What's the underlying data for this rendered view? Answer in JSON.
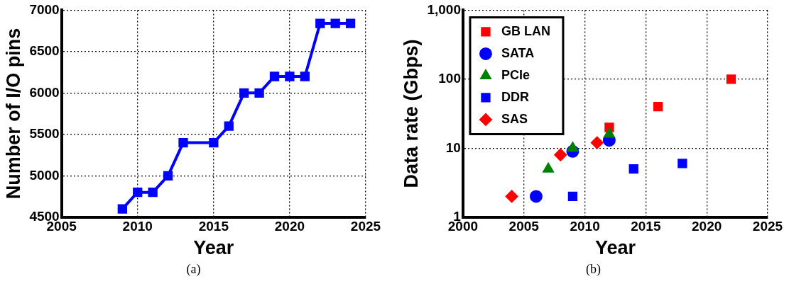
{
  "chart_data": [
    {
      "type": "line",
      "xlabel": "Year",
      "ylabel": "Number of I/O pins",
      "xlim": [
        2005,
        2025
      ],
      "xticks": [
        2005,
        2010,
        2015,
        2020,
        2025
      ],
      "ylim": [
        4500,
        7000
      ],
      "yticks": [
        4500,
        5000,
        5500,
        6000,
        6500,
        7000
      ],
      "grid": true,
      "marker": "square",
      "line_style": "solid",
      "annotations": [
        "(a)"
      ],
      "series": [
        {
          "color": "#0000ff",
          "x": [
            2009,
            2010,
            2011,
            2012,
            2013,
            2015,
            2016,
            2017,
            2018,
            2019,
            2020,
            2021,
            2022,
            2023,
            2024
          ],
          "values": [
            4600,
            4800,
            4800,
            5000,
            5400,
            5400,
            5600,
            6000,
            6000,
            6200,
            6200,
            6200,
            6840,
            6840,
            6840
          ]
        }
      ]
    },
    {
      "type": "scatter",
      "xlabel": "Year",
      "ylabel": "Data rate (Gbps)",
      "log": "y",
      "xlim": [
        2000,
        2025
      ],
      "xticks": [
        2000,
        2005,
        2010,
        2015,
        2020,
        2025
      ],
      "ylim": [
        1,
        1000
      ],
      "yticks": [
        1,
        10,
        100,
        {
          "value": 1000,
          "label": "1,000"
        }
      ],
      "grid": true,
      "legend": "top left",
      "annotations": [
        "(b)"
      ],
      "series": [
        {
          "name": "GB LAN",
          "color": "#ff0000",
          "marker": "square",
          "x": [
            2012,
            2016,
            2022
          ],
          "values": [
            20,
            40,
            100
          ]
        },
        {
          "name": "SATA",
          "color": "#0000ff",
          "marker": "circle",
          "x": [
            2006,
            2009,
            2012
          ],
          "values": [
            2,
            9,
            13
          ]
        },
        {
          "name": "PCIe",
          "color": "#008000",
          "marker": "triangle",
          "x": [
            2007,
            2009,
            2012
          ],
          "values": [
            5,
            10,
            16
          ]
        },
        {
          "name": "DDR",
          "color": "#0000ff",
          "marker": "square",
          "x": [
            2009,
            2014,
            2018
          ],
          "values": [
            2,
            5,
            6
          ]
        },
        {
          "name": "SAS",
          "color": "#ff0000",
          "marker": "diamond",
          "x": [
            2004,
            2008,
            2011
          ],
          "values": [
            2,
            8,
            12
          ]
        }
      ]
    }
  ]
}
